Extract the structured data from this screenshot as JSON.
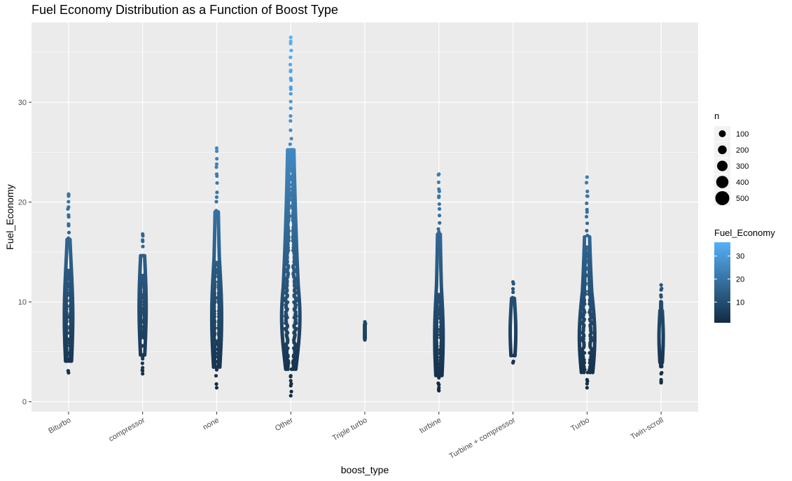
{
  "chart_data": {
    "type": "scatter",
    "title": "Fuel Economy Distribution as a Function of Boost Type",
    "xlabel": "boost_type",
    "ylabel": "Fuel_Economy",
    "categories": [
      "Biturbo",
      "compressor",
      "none",
      "Other",
      "Triple turbo",
      "turbine",
      "Turbine + compressor",
      "Turbo",
      "Twin-scroll"
    ],
    "ylim": [
      -1,
      38
    ],
    "y_ticks": [
      0,
      10,
      20,
      30
    ],
    "y_minor_ticks": [
      5,
      15,
      25,
      35
    ],
    "grid": true,
    "colors": {
      "panel": "#ebebeb",
      "grid": "#ffffff",
      "low": "#132b43",
      "high": "#56b1f7"
    },
    "series": [
      {
        "category": "Biturbo",
        "min": 2.9,
        "max": 20.8,
        "q1": 5.5,
        "median": 8.5,
        "q3": 11.0,
        "spread": 6,
        "outliers": [
          2.9,
          17.8,
          18.7,
          19.5,
          20.6,
          20.8
        ]
      },
      {
        "category": "compressor",
        "min": 2.8,
        "max": 16.8,
        "q1": 7.0,
        "median": 9.5,
        "q3": 12.0,
        "spread": 5,
        "outliers": [
          2.8,
          3.1,
          3.4,
          4.3,
          4.5,
          5.6,
          16.2,
          16.8
        ]
      },
      {
        "category": "none",
        "min": 1.4,
        "max": 25.4,
        "q1": 6.0,
        "median": 8.5,
        "q3": 11.5,
        "spread": 7,
        "outliers": [
          1.4,
          3.2,
          4.0,
          19.0,
          20.5,
          22.8,
          23.8,
          25.4
        ]
      },
      {
        "category": "Other",
        "min": 0.6,
        "max": 36.5,
        "q1": 6.5,
        "median": 8.5,
        "q3": 11.5,
        "spread": 13,
        "outliers": [
          0.6,
          1.6,
          2.1,
          2.6,
          31.5,
          32.4,
          33.2,
          36.1,
          36.5
        ]
      },
      {
        "category": "Triple turbo",
        "min": 6.2,
        "max": 8.0,
        "q1": 6.5,
        "median": 7.0,
        "q3": 7.6,
        "spread": 1,
        "outliers": [
          6.2,
          6.5,
          7.3,
          7.6,
          8.0
        ]
      },
      {
        "category": "turbine",
        "min": 1.1,
        "max": 22.8,
        "q1": 4.5,
        "median": 6.5,
        "q3": 9.5,
        "spread": 6,
        "outliers": [
          1.1,
          1.4,
          1.7,
          2.4,
          2.8,
          17.0,
          20.6,
          21.3,
          22.8
        ]
      },
      {
        "category": "Turbine + compressor",
        "min": 3.9,
        "max": 12.0,
        "q1": 5.5,
        "median": 7.0,
        "q3": 8.5,
        "spread": 4,
        "outliers": [
          3.9,
          11.3,
          12.0
        ]
      },
      {
        "category": "Turbo",
        "min": 1.4,
        "max": 22.5,
        "q1": 4.8,
        "median": 6.5,
        "q3": 9.5,
        "spread": 11,
        "outliers": [
          1.4,
          1.8,
          2.2,
          19.0,
          20.6,
          22.5
        ]
      },
      {
        "category": "Twin-scroll",
        "min": 1.9,
        "max": 11.7,
        "q1": 5.5,
        "median": 6.5,
        "q3": 8.0,
        "spread": 3,
        "outliers": [
          1.9,
          2.2,
          2.8,
          10.5,
          11.2,
          11.7
        ]
      }
    ],
    "legend": {
      "position": "right",
      "size_title": "n",
      "size_entries": [
        {
          "label": "100",
          "value": 100
        },
        {
          "label": "200",
          "value": 200
        },
        {
          "label": "300",
          "value": 300
        },
        {
          "label": "400",
          "value": 400
        },
        {
          "label": "500",
          "value": 500
        }
      ],
      "color_title": "Fuel_Economy",
      "color_range": [
        1,
        36
      ],
      "color_ticks": [
        10,
        20,
        30
      ]
    }
  }
}
